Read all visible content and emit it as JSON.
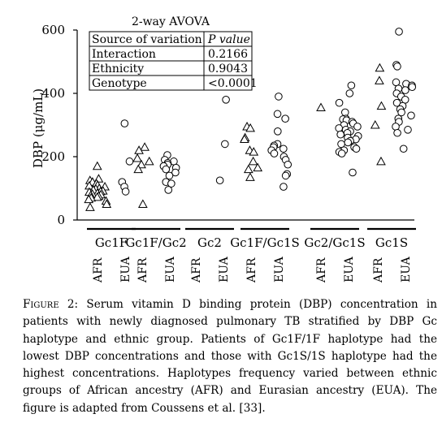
{
  "chart_data": {
    "type": "scatter",
    "ylabel": "DBP (μg/mL)",
    "ylim": [
      0,
      600
    ],
    "yticks": [
      0,
      200,
      400,
      600
    ],
    "groups": [
      "Gc1F",
      "Gc1F/Gc2",
      "Gc2",
      "Gc1F/Gc1S",
      "Gc2/Gc1S",
      "Gc1S"
    ],
    "ethnicities": [
      "AFR",
      "EUA"
    ],
    "markers": {
      "AFR": "triangle",
      "EUA": "circle"
    },
    "series": [
      {
        "group": "Gc1F",
        "ethnicity": "AFR",
        "values": [
          170,
          130,
          125,
          120,
          115,
          110,
          108,
          105,
          100,
          98,
          95,
          92,
          90,
          88,
          85,
          82,
          80,
          78,
          75,
          72,
          70,
          65,
          60,
          50,
          40
        ]
      },
      {
        "group": "Gc1F",
        "ethnicity": "EUA",
        "values": [
          305,
          185,
          120,
          105,
          90
        ]
      },
      {
        "group": "Gc1F/Gc2",
        "ethnicity": "AFR",
        "values": [
          230,
          220,
          195,
          185,
          175,
          160,
          50
        ]
      },
      {
        "group": "Gc1F/Gc2",
        "ethnicity": "EUA",
        "values": [
          205,
          190,
          185,
          180,
          175,
          170,
          165,
          160,
          150,
          140,
          120,
          115,
          95
        ]
      },
      {
        "group": "Gc2",
        "ethnicity": "AFR",
        "values": []
      },
      {
        "group": "Gc2",
        "ethnicity": "EUA",
        "values": [
          380,
          240,
          125
        ]
      },
      {
        "group": "Gc1F/Gc1S",
        "ethnicity": "AFR",
        "values": [
          295,
          290,
          260,
          255,
          220,
          215,
          185,
          165,
          160,
          135
        ]
      },
      {
        "group": "Gc1F/Gc1S",
        "ethnicity": "EUA",
        "values": [
          390,
          335,
          320,
          280,
          240,
          235,
          230,
          225,
          220,
          210,
          200,
          190,
          175,
          145,
          140,
          105
        ]
      },
      {
        "group": "Gc2/Gc1S",
        "ethnicity": "AFR",
        "values": [
          355
        ]
      },
      {
        "group": "Gc2/Gc1S",
        "ethnicity": "EUA",
        "values": [
          425,
          400,
          370,
          340,
          320,
          318,
          315,
          310,
          305,
          300,
          295,
          290,
          285,
          280,
          275,
          270,
          265,
          260,
          255,
          250,
          245,
          240,
          230,
          225,
          220,
          215,
          210,
          150
        ]
      },
      {
        "group": "Gc1S",
        "ethnicity": "AFR",
        "values": [
          480,
          440,
          360,
          300,
          185
        ]
      },
      {
        "group": "Gc1S",
        "ethnicity": "EUA",
        "values": [
          595,
          490,
          485,
          435,
          430,
          425,
          420,
          415,
          410,
          400,
          390,
          380,
          370,
          360,
          350,
          340,
          330,
          320,
          310,
          295,
          285,
          275,
          225
        ]
      }
    ],
    "anova_table": {
      "title": "2-way AVOVA",
      "header": [
        "Source of variation",
        "P value"
      ],
      "rows": [
        [
          "Interaction",
          "0.2166"
        ],
        [
          "Ethnicity",
          "0.9043"
        ],
        [
          "Genotype",
          "<0.0001"
        ]
      ]
    }
  },
  "caption": {
    "label": "Figure 2:",
    "text": "Serum vitamin D binding protein (DBP) concentration in patients with newly diagnosed pulmonary TB stratified by DBP Gc haplotype and ethnic group. Patients of Gc1F/1F haplotype had the lowest DBP concentrations and those with Gc1S/1S haplotype had the highest concentrations. Haplotypes frequency varied between ethnic groups of African ancestry (AFR) and Eurasian ancestry (EUA). The figure is adapted from Coussens et al. [33]."
  }
}
